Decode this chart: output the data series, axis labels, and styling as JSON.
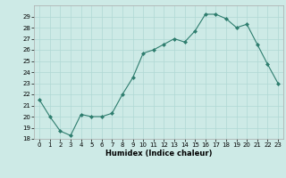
{
  "hours": [
    0,
    1,
    2,
    3,
    4,
    5,
    6,
    7,
    8,
    9,
    10,
    11,
    12,
    13,
    14,
    15,
    16,
    17,
    18,
    19,
    20,
    21,
    22,
    23
  ],
  "values": [
    21.5,
    20.0,
    18.7,
    18.3,
    20.2,
    20.0,
    20.0,
    20.3,
    22.0,
    23.5,
    25.7,
    26.0,
    26.5,
    27.0,
    26.7,
    27.7,
    29.2,
    29.2,
    28.8,
    28.0,
    28.3,
    26.5,
    24.7,
    23.0
  ],
  "line_color": "#2e7d6e",
  "marker": "D",
  "marker_size": 2,
  "bg_color": "#cdeae6",
  "grid_color": "#b0d8d4",
  "xlabel": "Humidex (Indice chaleur)",
  "ylim": [
    18,
    30
  ],
  "yticks": [
    18,
    19,
    20,
    21,
    22,
    23,
    24,
    25,
    26,
    27,
    28,
    29
  ],
  "xlim": [
    -0.5,
    23.5
  ],
  "xticks": [
    0,
    1,
    2,
    3,
    4,
    5,
    6,
    7,
    8,
    9,
    10,
    11,
    12,
    13,
    14,
    15,
    16,
    17,
    18,
    19,
    20,
    21,
    22,
    23
  ]
}
